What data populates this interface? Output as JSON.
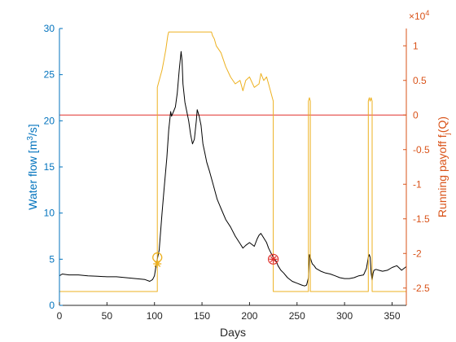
{
  "chart_data": {
    "type": "line",
    "xlabel": "Days",
    "ylabel_left": "Water flow [m³/s]",
    "ylabel_left_parts": {
      "pre": "Water flow [m",
      "sup": "3",
      "post": "/s]"
    },
    "ylabel_right": "Running payoff f_j(Q)",
    "ylabel_right_parts": {
      "pre": "Running payoff f",
      "sub": "j",
      "post": "(Q)"
    },
    "right_axis_exponent": {
      "base": "×10",
      "power": "4"
    },
    "xlim": [
      0,
      365
    ],
    "ylim_left": [
      0,
      30
    ],
    "ylim_right": [
      -2.75,
      1.25
    ],
    "x_ticks": [
      0,
      50,
      100,
      150,
      200,
      250,
      300,
      350
    ],
    "x_tick_labels": [
      "0",
      "50",
      "100",
      "150",
      "200",
      "250",
      "300",
      "350"
    ],
    "y_left_ticks": [
      0,
      5,
      10,
      15,
      20,
      25,
      30
    ],
    "y_left_tick_labels": [
      "0",
      "5",
      "10",
      "15",
      "20",
      "25",
      "30"
    ],
    "y_right_ticks": [
      -2.5,
      -2,
      -1.5,
      -1,
      -0.5,
      0,
      0.5,
      1
    ],
    "y_right_tick_labels": [
      "-2.5",
      "-2",
      "-1.5",
      "-1",
      "-0.5",
      "0",
      "0.5",
      "1"
    ],
    "colors": {
      "flow": "#000000",
      "payoff": "#edb120",
      "zero_line": "#e0302b",
      "left_axis": "#0072bd",
      "right_axis": "#d95319",
      "marker_end": "#e0302b"
    },
    "series": [
      {
        "axis": "left",
        "x": [
          0,
          3,
          6,
          10,
          20,
          30,
          40,
          50,
          60,
          70,
          80,
          90,
          95,
          98,
          100,
          102,
          105,
          108,
          110,
          113,
          115,
          117,
          118,
          120,
          122,
          124,
          126,
          128,
          129,
          130,
          132,
          134,
          136,
          138,
          140,
          142,
          144,
          145,
          147,
          149,
          151,
          153,
          155,
          158,
          162,
          166,
          170,
          175,
          180,
          185,
          190,
          193,
          196,
          200,
          205,
          208,
          210,
          212,
          215,
          218,
          220,
          222,
          224,
          226,
          228,
          230,
          233,
          236,
          240,
          245,
          250,
          255,
          258,
          260,
          262,
          263,
          264,
          265,
          266,
          268,
          270,
          275,
          280,
          285,
          290,
          295,
          300,
          305,
          310,
          315,
          320,
          323,
          325,
          326,
          327,
          328,
          329,
          330,
          331,
          333,
          336,
          340,
          345,
          350,
          355,
          360,
          365
        ],
        "y": [
          3.2,
          3.4,
          3.35,
          3.3,
          3.3,
          3.2,
          3.15,
          3.1,
          3.1,
          3.0,
          2.9,
          2.8,
          2.6,
          2.8,
          3.2,
          4.5,
          6.0,
          10.0,
          12.5,
          16.0,
          19.0,
          21.0,
          20.5,
          21.0,
          21.5,
          23.0,
          25.5,
          27.5,
          26.5,
          24.0,
          22.0,
          21.0,
          20.0,
          18.5,
          17.5,
          18.0,
          20.0,
          21.2,
          20.5,
          19.5,
          17.5,
          16.5,
          15.5,
          14.5,
          13.0,
          11.5,
          10.5,
          9.3,
          8.5,
          7.5,
          6.7,
          6.2,
          6.5,
          6.8,
          6.4,
          7.2,
          7.6,
          7.8,
          7.3,
          6.8,
          6.2,
          5.8,
          5.4,
          5.0,
          4.8,
          4.3,
          3.8,
          3.5,
          3.0,
          2.6,
          2.4,
          2.2,
          2.1,
          2.2,
          3.0,
          5.5,
          5.2,
          4.8,
          4.5,
          4.3,
          4.0,
          3.7,
          3.5,
          3.4,
          3.2,
          3.0,
          2.9,
          2.9,
          3.0,
          3.2,
          3.3,
          4.0,
          5.2,
          5.5,
          5.2,
          3.5,
          2.7,
          3.5,
          3.8,
          3.9,
          3.8,
          3.7,
          3.8,
          4.1,
          4.3,
          3.8,
          4.2
        ]
      },
      {
        "axis": "right",
        "x": [
          0,
          103,
          103,
          105,
          108,
          110,
          112,
          113,
          114,
          115,
          116,
          160,
          161,
          163,
          165,
          170,
          175,
          180,
          185,
          190,
          193,
          196,
          200,
          205,
          210,
          212,
          215,
          218,
          220,
          222,
          224,
          225,
          225,
          262,
          262,
          263,
          264,
          264,
          266,
          266,
          325,
          325,
          326,
          327,
          328,
          329,
          329,
          365
        ],
        "y": [
          -2.55,
          -2.55,
          0.4,
          0.5,
          0.65,
          0.8,
          0.95,
          1.05,
          1.15,
          1.2,
          1.2,
          1.2,
          1.15,
          1.1,
          1.0,
          0.9,
          0.7,
          0.55,
          0.45,
          0.5,
          0.35,
          0.5,
          0.55,
          0.4,
          0.45,
          0.6,
          0.5,
          0.55,
          0.45,
          0.35,
          0.25,
          0.2,
          -2.55,
          -2.55,
          0.2,
          0.25,
          0.2,
          -2.55,
          -2.55,
          -2.55,
          -2.55,
          0.2,
          0.25,
          0.2,
          0.25,
          0.2,
          -2.55,
          -2.55
        ]
      }
    ],
    "reference_line": {
      "axis": "right",
      "y": 0
    },
    "markers": [
      {
        "x": 103,
        "y": 5.2,
        "axis": "left",
        "shape": "circle",
        "color": "#edb120"
      },
      {
        "x": 103,
        "y": 4.5,
        "axis": "left",
        "shape": "star",
        "color": "#edb120"
      },
      {
        "x": 225,
        "y": 5.0,
        "axis": "left",
        "shape": "circle-star",
        "color": "#e0302b"
      }
    ]
  }
}
